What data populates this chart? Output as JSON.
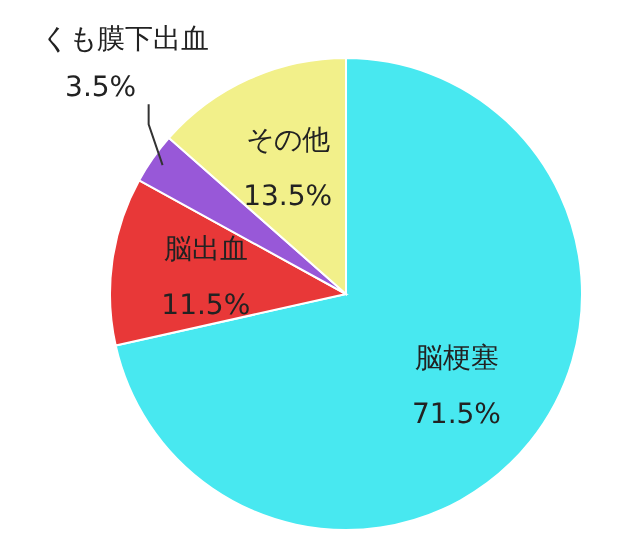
{
  "chart_data": {
    "type": "pie",
    "categories": [
      "脳梗塞",
      "脳出血",
      "くも膜下出血",
      "その他"
    ],
    "values": [
      71.5,
      11.5,
      3.5,
      13.5
    ],
    "colors": [
      "#48e8f0",
      "#e83838",
      "#9858d8",
      "#f2f08a"
    ],
    "value_labels": [
      "71.5%",
      "11.5%",
      "3.5%",
      "13.5%"
    ]
  }
}
